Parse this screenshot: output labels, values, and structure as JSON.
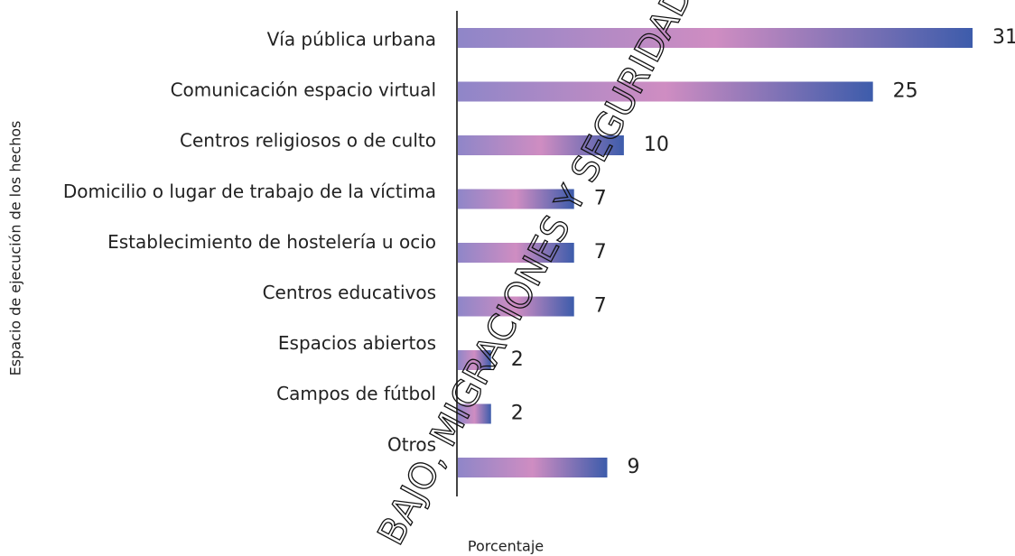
{
  "chart_data": {
    "type": "bar",
    "orientation": "horizontal",
    "categories": [
      "Vía pública urbana",
      "Comunicación espacio virtual",
      "Centros religiosos o de culto",
      "Domicilio o lugar de trabajo de la víctima",
      "Establecimiento de hostelería u ocio",
      "Centros educativos",
      "Espacios abiertos",
      "Campos de fútbol",
      "Otros"
    ],
    "values": [
      31,
      25,
      10,
      7,
      7,
      7,
      2,
      2,
      9
    ],
    "gradient": [
      "#8f86c8",
      "#cf8dc2",
      "#3d5cab"
    ],
    "xlim": [
      0,
      31
    ],
    "x_label": "Porcentaje",
    "y_label": "Espacio de ejecución de los hechos",
    "watermark": "BAJO, MIGRACIONES Y SEGURIDAD"
  }
}
